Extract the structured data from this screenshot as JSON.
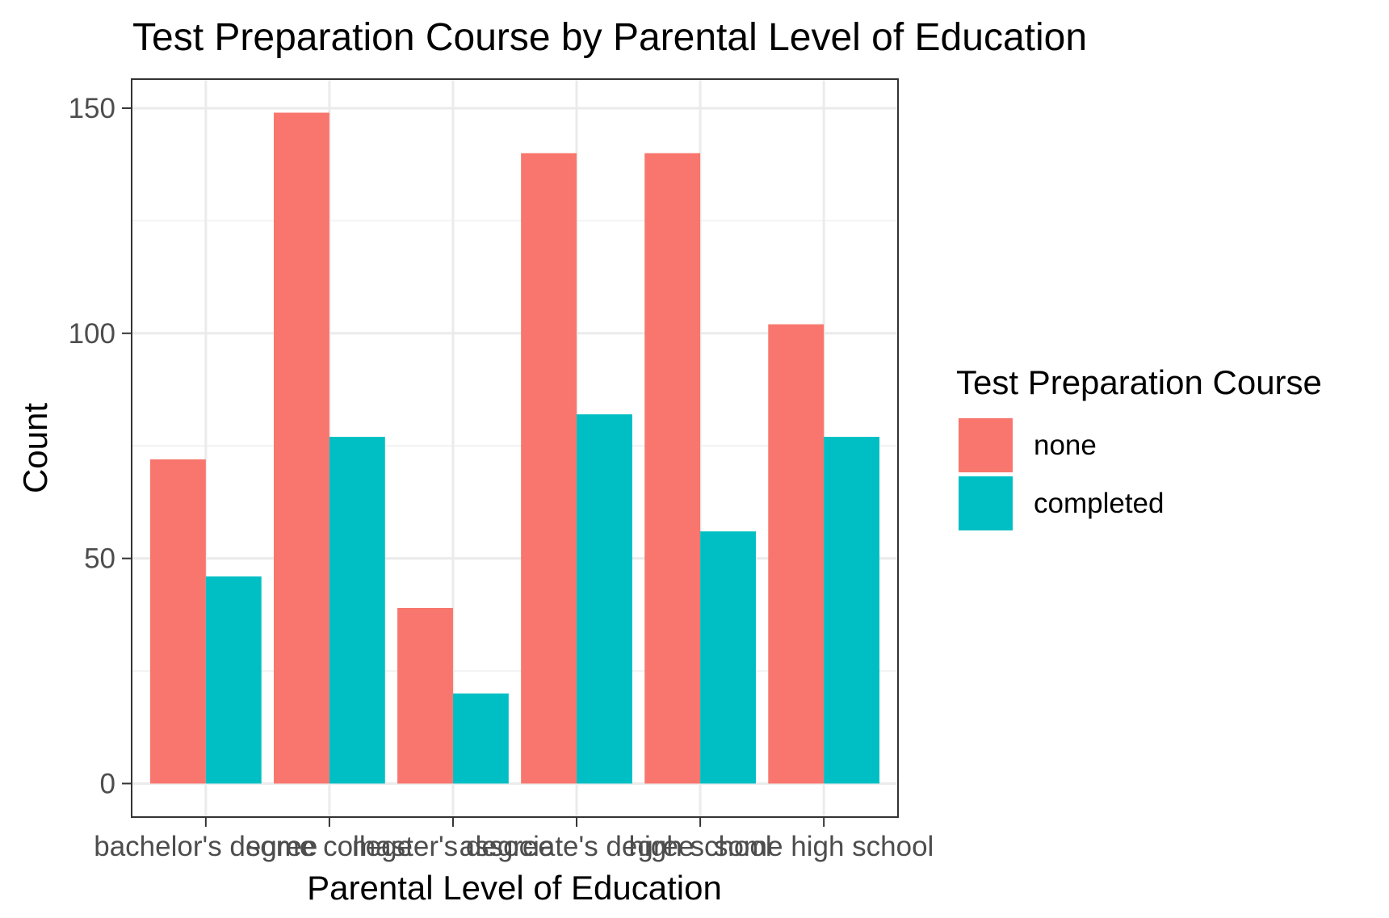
{
  "chart_data": {
    "type": "bar",
    "title": "Test Preparation Course by Parental Level of Education",
    "xlabel": "Parental Level of Education",
    "ylabel": "Count",
    "categories": [
      "bachelor's degree",
      "some college",
      "master's degree",
      "associate's degree",
      "high school",
      "some high school"
    ],
    "series": [
      {
        "name": "none",
        "color": "#F8766D",
        "values": [
          72,
          149,
          39,
          140,
          140,
          102
        ]
      },
      {
        "name": "completed",
        "color": "#00BFC4",
        "values": [
          46,
          77,
          20,
          82,
          56,
          77
        ]
      }
    ],
    "ylim": [
      -7.45,
      156.45
    ],
    "yticks": [
      0,
      50,
      100,
      150
    ],
    "ytick_labels": [
      "0",
      "50",
      "100",
      "150"
    ],
    "grid": true,
    "legend": {
      "title": "Test Preparation Course",
      "position": "right"
    }
  }
}
